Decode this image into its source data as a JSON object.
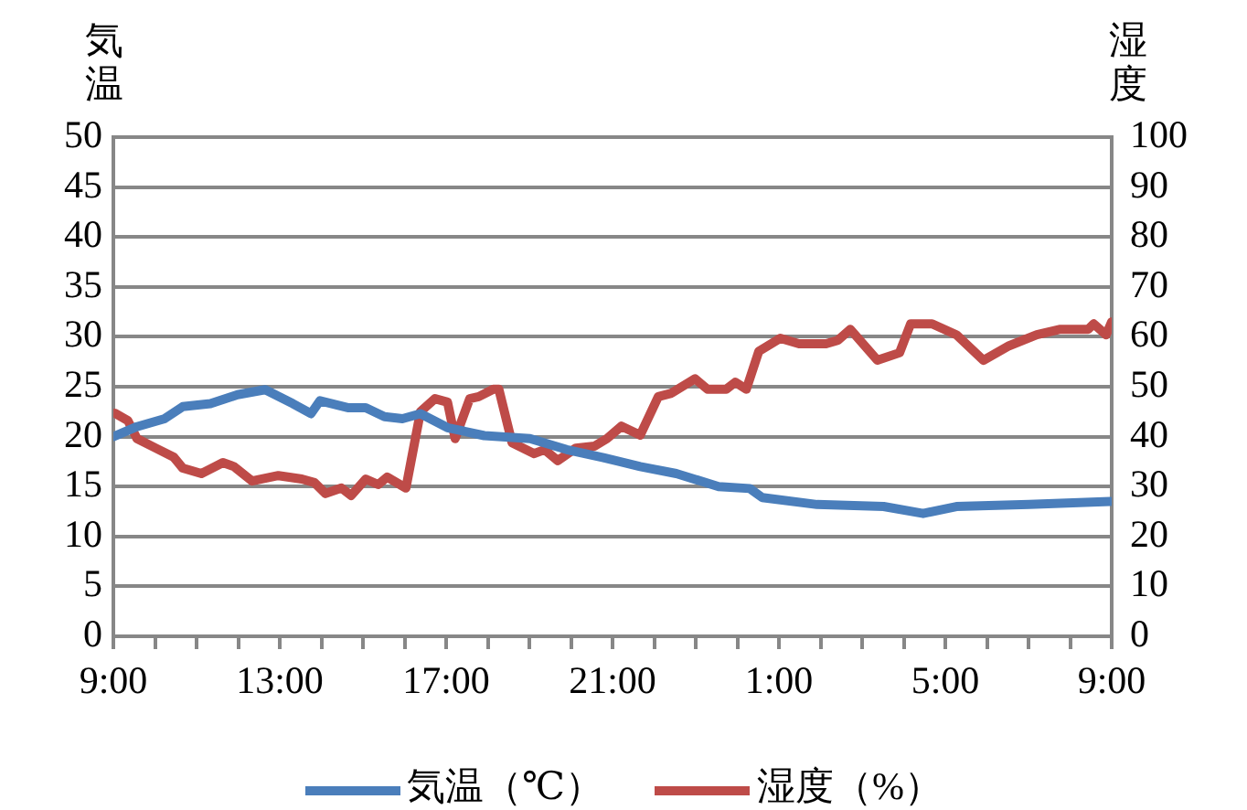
{
  "chart_data": {
    "type": "line",
    "ylabel": "気温",
    "y2label": "湿度",
    "xlim": [
      "--01-01T09:00",
      "--01-02T09:00"
    ],
    "xticks": [
      {
        "value": "--01-01T09:00",
        "label": "9:00"
      },
      {
        "value": "--01-01T10:00",
        "label": null
      },
      {
        "value": "--01-01T11:00",
        "label": null
      },
      {
        "value": "--01-01T12:00",
        "label": null
      },
      {
        "value": "--01-01T13:00",
        "label": "13:00"
      },
      {
        "value": "--01-01T14:00",
        "label": null
      },
      {
        "value": "--01-01T15:00",
        "label": null
      },
      {
        "value": "--01-01T16:00",
        "label": null
      },
      {
        "value": "--01-01T17:00",
        "label": "17:00"
      },
      {
        "value": "--01-01T18:00",
        "label": null
      },
      {
        "value": "--01-01T19:00",
        "label": null
      },
      {
        "value": "--01-01T20:00",
        "label": null
      },
      {
        "value": "--01-01T21:00",
        "label": "21:00"
      },
      {
        "value": "--01-01T22:00",
        "label": null
      },
      {
        "value": "--01-01T23:00",
        "label": null
      },
      {
        "value": "--01-02T00:00",
        "label": null
      },
      {
        "value": "--01-02T01:00",
        "label": "1:00"
      },
      {
        "value": "--01-02T02:00",
        "label": null
      },
      {
        "value": "--01-02T03:00",
        "label": null
      },
      {
        "value": "--01-02T04:00",
        "label": null
      },
      {
        "value": "--01-02T05:00",
        "label": "5:00"
      },
      {
        "value": "--01-02T06:00",
        "label": null
      },
      {
        "value": "--01-02T07:00",
        "label": null
      },
      {
        "value": "--01-02T08:00",
        "label": null
      },
      {
        "value": "--01-02T09:00",
        "label": "9:00"
      }
    ],
    "ylim": [
      0,
      50
    ],
    "yticks": [
      0,
      5,
      10,
      15,
      20,
      25,
      30,
      35,
      40,
      45,
      50
    ],
    "y2lim": [
      0,
      100
    ],
    "y2ticks": [
      0,
      10,
      20,
      30,
      40,
      50,
      60,
      70,
      80,
      90,
      100
    ],
    "grid": "y",
    "legend": "bottom",
    "marker": "none",
    "series": [
      {
        "name": "気温（℃）",
        "color": "#4a7ebb",
        "x": [
          "--01-01T09:00",
          "--01-01T09:34",
          "--01-01T10:14",
          "--01-01T10:40",
          "--01-01T11:20",
          "--01-01T11:59",
          "--01-01T12:39",
          "--01-01T13:19",
          "--01-01T13:45",
          "--01-01T13:58",
          "--01-01T14:38",
          "--01-01T15:04",
          "--01-01T15:31",
          "--01-01T15:57",
          "--01-01T16:23",
          "--01-01T17:02",
          "--01-01T17:55",
          "--01-01T19:01",
          "--01-01T19:54",
          "--01-01T20:47",
          "--01-01T21:40",
          "--01-01T22:32",
          "--01-01T23:33",
          "--01-02T00:18",
          "--01-02T00:36",
          "--01-02T01:55",
          "--01-02T03:31",
          "--01-02T04:28",
          "--01-02T05:16",
          "--01-02T07:01",
          "--01-02T08:58"
        ],
        "values": [
          20,
          21,
          21.8,
          23,
          23.3,
          24.2,
          24.7,
          23.3,
          22.3,
          23.6,
          22.9,
          22.9,
          22,
          21.8,
          22.3,
          20.9,
          20.1,
          19.8,
          18.7,
          17.9,
          17,
          16.3,
          15,
          14.8,
          13.9,
          13.2,
          13,
          12.3,
          13,
          13.2,
          13.5
        ]
      },
      {
        "name": "湿度（%）",
        "color": "#be4b48",
        "axis": "y2",
        "x": [
          "--01-01T09:02",
          "--01-01T09:21",
          "--01-01T09:34",
          "--01-01T10:01",
          "--01-01T10:27",
          "--01-01T10:40",
          "--01-01T11:07",
          "--01-01T11:38",
          "--01-01T11:54",
          "--01-01T12:20",
          "--01-01T12:58",
          "--01-01T13:32",
          "--01-01T13:50",
          "--01-01T14:06",
          "--01-01T14:29",
          "--01-01T14:43",
          "--01-01T15:04",
          "--01-01T15:22",
          "--01-01T15:35",
          "--01-01T16:02",
          "--01-01T16:23",
          "--01-01T16:44",
          "--01-01T17:02",
          "--01-01T17:13",
          "--01-01T17:34",
          "--01-01T17:47",
          "--01-01T18:08",
          "--01-01T18:16",
          "--01-01T18:35",
          "--01-01T19:07",
          "--01-01T19:22",
          "--01-01T19:41",
          "--01-01T20:07",
          "--01-01T20:34",
          "--01-01T20:52",
          "--01-01T21:13",
          "--01-01T21:40",
          "--01-01T22:06",
          "--01-01T22:25",
          "--01-01T22:59",
          "--01-01T23:17",
          "--01-01T23:44",
          "--01-01T23:57",
          "--01-02T00:13",
          "--01-02T00:31",
          "--01-02T01:02",
          "--01-02T01:29",
          "--01-02T02:08",
          "--01-02T02:25",
          "--01-02T02:43",
          "--01-02T03:22",
          "--01-02T03:54",
          "--01-02T04:10",
          "--01-02T04:41",
          "--01-02T05:16",
          "--01-02T05:55",
          "--01-02T06:32",
          "--01-02T07:12",
          "--01-02T07:46",
          "--01-02T08:26",
          "--01-02T08:34",
          "--01-02T08:52",
          "--01-02T09:00"
        ],
        "values": [
          44.7,
          43.2,
          39.6,
          37.7,
          35.9,
          33.7,
          32.6,
          34.8,
          34,
          31.1,
          32.2,
          31.5,
          30.8,
          28.6,
          29.7,
          28.2,
          31.5,
          30.4,
          31.9,
          29.7,
          45,
          47.6,
          46.9,
          39.6,
          47.6,
          48,
          49.5,
          49.5,
          38.8,
          36.6,
          37.4,
          35.2,
          37.7,
          38.1,
          39.6,
          42.1,
          40.3,
          48,
          48.7,
          51.6,
          49.5,
          49.5,
          50.9,
          49.5,
          57.1,
          59.7,
          58.6,
          58.6,
          59.3,
          61.5,
          55.3,
          56.8,
          62.6,
          62.6,
          60.4,
          55.3,
          58.2,
          60.4,
          61.5,
          61.5,
          62.6,
          60.4,
          63
        ]
      }
    ]
  }
}
